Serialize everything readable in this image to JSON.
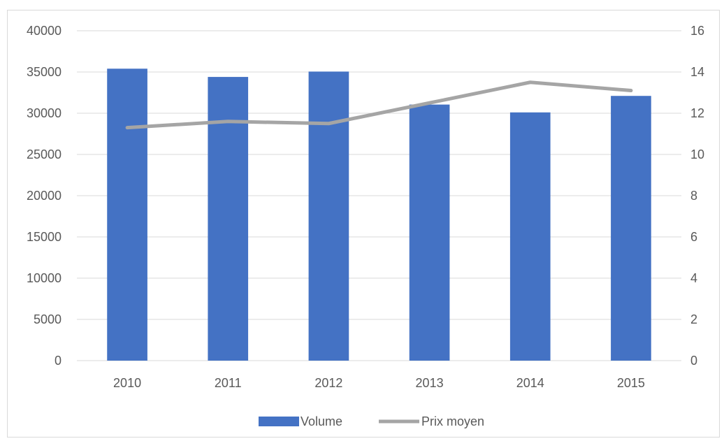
{
  "chart_data": {
    "type": "bar",
    "categories": [
      "2010",
      "2011",
      "2012",
      "2013",
      "2014",
      "2015"
    ],
    "series": [
      {
        "name": "Volume",
        "type": "bar",
        "axis": "left",
        "color": "#4472c4",
        "values": [
          35400,
          34400,
          35050,
          31050,
          30100,
          32100
        ]
      },
      {
        "name": "Prix moyen",
        "type": "line",
        "axis": "right",
        "color": "#a5a5a5",
        "values": [
          11.3,
          11.6,
          11.5,
          12.5,
          13.5,
          13.1
        ]
      }
    ],
    "y_left": {
      "min": 0,
      "max": 40000,
      "step": 5000,
      "ticks": [
        "0",
        "5000",
        "10000",
        "15000",
        "20000",
        "25000",
        "30000",
        "35000",
        "40000"
      ]
    },
    "y_right": {
      "min": 0,
      "max": 16,
      "step": 2,
      "ticks": [
        "0",
        "2",
        "4",
        "6",
        "8",
        "10",
        "12",
        "14",
        "16"
      ]
    },
    "grid": true,
    "legend_position": "bottom"
  }
}
